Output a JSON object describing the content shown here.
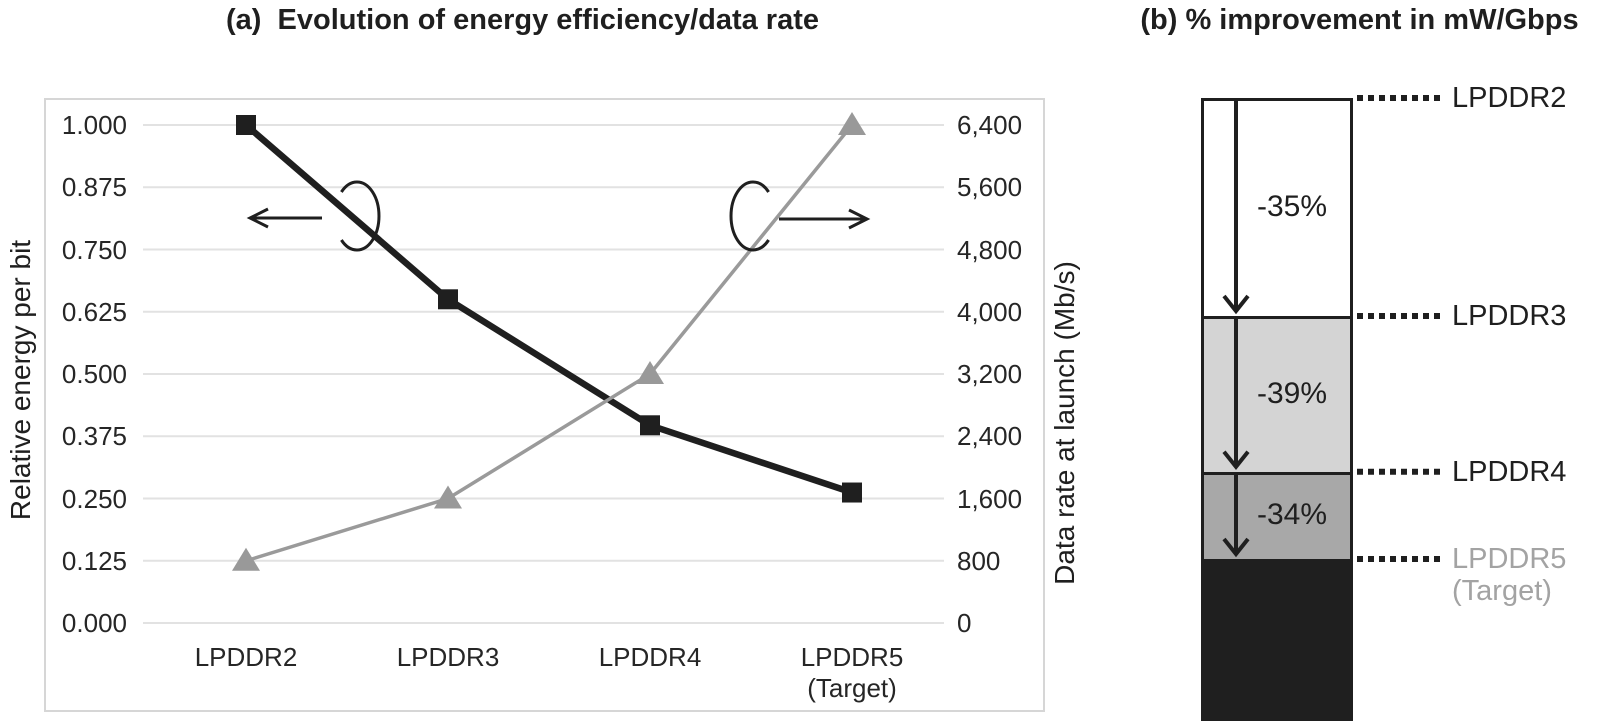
{
  "titles": {
    "a": "(a)  Evolution of energy efficiency/data rate",
    "b": "(b) % improvement in mW/Gbps"
  },
  "chart_data": [
    {
      "type": "line",
      "title": "(a) Evolution of energy efficiency/data rate",
      "categories": [
        "LPDDR2",
        "LPDDR3",
        "LPDDR4",
        "LPDDR5 (Target)"
      ],
      "category_lines": [
        [
          "LPDDR2"
        ],
        [
          "LPDDR3"
        ],
        [
          "LPDDR4"
        ],
        [
          "LPDDR5",
          "(Target)"
        ]
      ],
      "left_axis": {
        "label": "Relative energy per bit",
        "min": 0,
        "max": 1,
        "ticks": [
          "1.000",
          "0.875",
          "0.750",
          "0.625",
          "0.500",
          "0.375",
          "0.250",
          "0.125",
          "0.000"
        ]
      },
      "right_axis": {
        "label": "Data rate at launch (Mb/s)",
        "min": 0,
        "max": 6400,
        "ticks": [
          "6,400",
          "5,600",
          "4,800",
          "4,000",
          "3,200",
          "2,400",
          "1,600",
          "800",
          "0"
        ]
      },
      "grid": true,
      "legend": "none",
      "series": [
        {
          "name": "Relative energy per bit",
          "axis": "left",
          "marker": "square",
          "line_color": "#1f1f1f",
          "marker_color": "#1f1f1f",
          "values": [
            1.0,
            0.65,
            0.397,
            0.262
          ]
        },
        {
          "name": "Data rate at launch (Mb/s)",
          "axis": "right",
          "marker": "triangle",
          "line_color": "#9a9a9a",
          "marker_color": "#999999",
          "values": [
            800,
            1600,
            3200,
            6400
          ]
        }
      ],
      "annotations": [
        {
          "name": "black-series-reads-left-axis",
          "direction": "left"
        },
        {
          "name": "gray-series-reads-right-axis",
          "direction": "right"
        }
      ]
    },
    {
      "type": "stacked-bar",
      "title": "(b) % improvement in mW/Gbps",
      "levels": [
        {
          "label": "LPDDR2",
          "value": 1.0,
          "label_color": "#1f1f1f"
        },
        {
          "label": "LPDDR3",
          "value": 0.65,
          "label_color": "#1f1f1f"
        },
        {
          "label": "LPDDR4",
          "value": 0.4,
          "label_color": "#1f1f1f"
        },
        {
          "label": "LPDDR5 (Target)",
          "label_lines": [
            "LPDDR5",
            "(Target)"
          ],
          "value": 0.26,
          "label_color": "#a3a3a3"
        }
      ],
      "segments": [
        {
          "label": "-35%",
          "fill": "#ffffff"
        },
        {
          "label": "-39%",
          "fill": "#d4d4d4"
        },
        {
          "label": "-34%",
          "fill": "#a8a8a8"
        },
        {
          "label": "",
          "fill": "#1f1f1f"
        }
      ],
      "colors": {
        "outline": "#1f1f1f",
        "leader": "#1f1f1f",
        "arrow": "#1f1f1f"
      }
    }
  ],
  "palette": {
    "gridline": "#e2e2e2",
    "frame_border": "#d6d6d6",
    "black_series": "#1f1f1f",
    "gray_series": "#9a9a9a"
  }
}
